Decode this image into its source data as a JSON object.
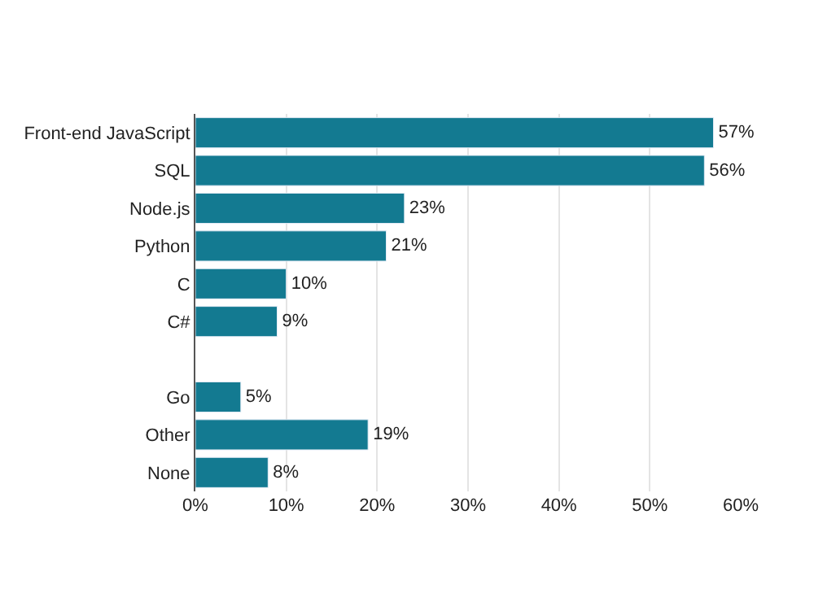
{
  "chart_data": {
    "type": "bar",
    "orientation": "horizontal",
    "categories": [
      "Front-end JavaScript",
      "SQL",
      "Node.js",
      "Python",
      "C",
      "C#",
      null,
      "Go",
      "Other",
      "None"
    ],
    "values": [
      57,
      56,
      23,
      21,
      10,
      9,
      null,
      5,
      19,
      8
    ],
    "value_labels": [
      "57%",
      "56%",
      "23%",
      "21%",
      "10%",
      "9%",
      null,
      "5%",
      "19%",
      "8%"
    ],
    "color": "#137a91",
    "xlim": [
      0,
      60
    ],
    "xticks": [
      {
        "value": 0,
        "label": "0%"
      },
      {
        "value": 10,
        "label": "10%"
      },
      {
        "value": 20,
        "label": "20%"
      },
      {
        "value": 30,
        "label": "30%"
      },
      {
        "value": 40,
        "label": "40%"
      },
      {
        "value": 50,
        "label": "50%"
      },
      {
        "value": 60,
        "label": "60%"
      }
    ],
    "grid": "x"
  }
}
